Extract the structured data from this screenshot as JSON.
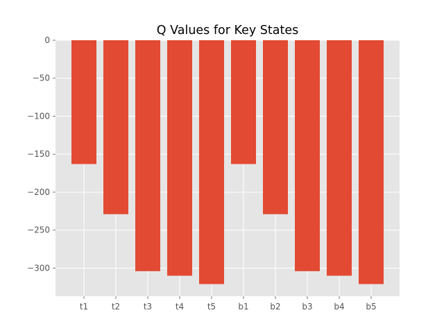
{
  "chart_data": {
    "type": "bar",
    "title": "Q Values for Key States",
    "xlabel": "",
    "ylabel": "",
    "categories": [
      "t1",
      "t2",
      "t3",
      "t4",
      "t5",
      "b1",
      "b2",
      "b3",
      "b4",
      "b5"
    ],
    "values": [
      -163,
      -229,
      -304,
      -310,
      -321,
      -163,
      -229,
      -304,
      -310,
      -321
    ],
    "ylim": [
      -337,
      0
    ],
    "yticks": [
      0,
      -50,
      -100,
      -150,
      -200,
      -250,
      -300
    ],
    "ytick_labels": [
      "0",
      "−50",
      "−100",
      "−150",
      "−200",
      "−250",
      "−300"
    ],
    "grid": true,
    "legend": "none",
    "colors": {
      "bar": "#E24A33",
      "plot_background": "#E5E5E5",
      "grid": "#FFFFFF",
      "tick_label": "#555555"
    }
  }
}
